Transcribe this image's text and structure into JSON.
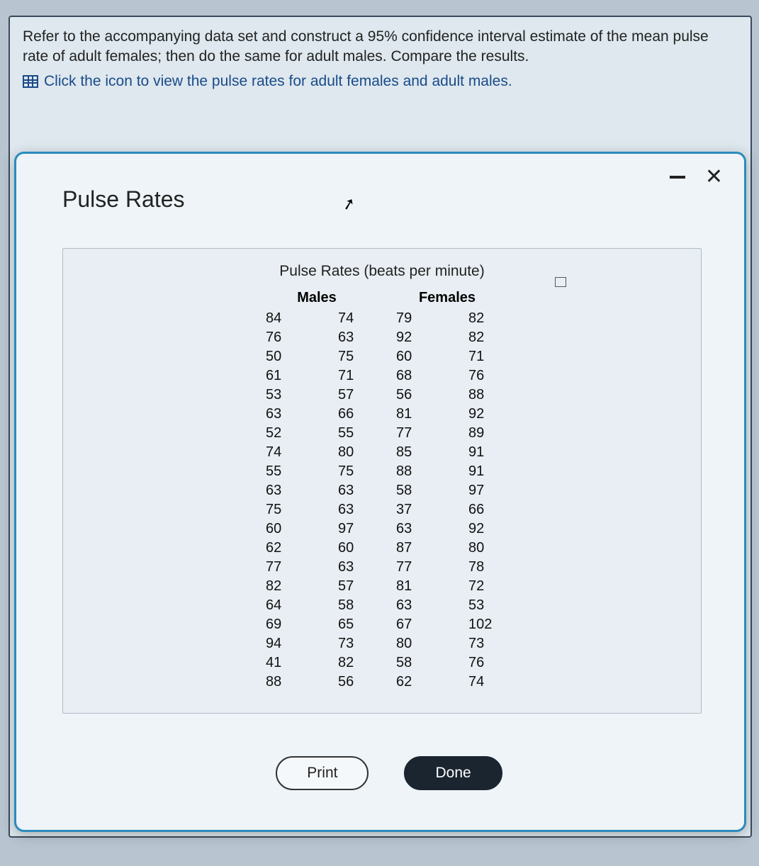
{
  "question": {
    "text_line1": "Refer to the accompanying data set and construct a 95% confidence interval estimate of the mean pulse",
    "text_line2": "rate of adult females; then do the same for adult males. Compare the results.",
    "link_text": "Click the icon to view the pulse rates for adult females and adult males."
  },
  "modal": {
    "title": "Pulse Rates",
    "panel_title": "Pulse Rates (beats per minute)",
    "headers": {
      "males": "Males",
      "females": "Females"
    },
    "buttons": {
      "print": "Print",
      "done": "Done"
    }
  },
  "table": {
    "type": "table",
    "columns": [
      "Males-1",
      "Males-2",
      "Females-1",
      "Females-2"
    ],
    "males_col1": [
      84,
      76,
      50,
      61,
      53,
      63,
      52,
      74,
      55,
      63,
      75,
      60,
      62,
      77,
      82,
      64,
      69,
      94,
      41,
      88
    ],
    "males_col2": [
      74,
      63,
      75,
      71,
      57,
      66,
      55,
      80,
      75,
      63,
      63,
      97,
      60,
      63,
      57,
      58,
      65,
      73,
      82,
      56
    ],
    "females_col1": [
      79,
      92,
      60,
      68,
      56,
      81,
      77,
      85,
      88,
      58,
      37,
      63,
      87,
      77,
      81,
      63,
      67,
      80,
      58,
      62
    ],
    "females_col2": [
      82,
      82,
      71,
      76,
      88,
      92,
      89,
      91,
      91,
      97,
      66,
      92,
      80,
      78,
      72,
      53,
      102,
      73,
      76,
      74
    ],
    "font_size": 20,
    "text_color": "#111111",
    "header_font_weight": "bold",
    "background_color": "#e8eef3",
    "border_color": "#b0bcc8"
  },
  "colors": {
    "page_bg": "#b8c4d0",
    "frame_bg": "#dee8ee",
    "frame_border": "#3a4a5a",
    "modal_bg": "#eef4f8",
    "modal_border": "#2b8bbd",
    "link_color": "#1a4a8a",
    "btn_done_bg": "#1a2530",
    "btn_print_bg": "#f5f8fa"
  }
}
